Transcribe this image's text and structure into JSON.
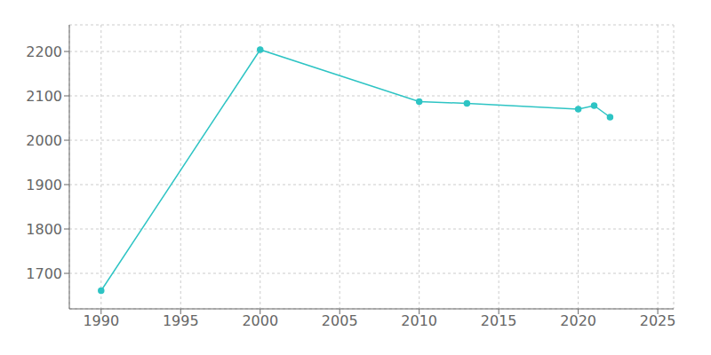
{
  "chart_data": {
    "type": "line",
    "x": [
      1990,
      2000,
      2010,
      2013,
      2020,
      2021,
      2022
    ],
    "values": [
      1661,
      2204,
      2087,
      2083,
      2070,
      2078,
      2052
    ],
    "color": "#2EC4C4",
    "marker": "circle",
    "xlim": [
      1988,
      2026
    ],
    "ylim": [
      1620,
      2260
    ],
    "xticks": [
      1990,
      1995,
      2000,
      2005,
      2010,
      2015,
      2020,
      2025
    ],
    "yticks": [
      1700,
      1800,
      1900,
      2000,
      2100,
      2200
    ],
    "grid": true
  }
}
